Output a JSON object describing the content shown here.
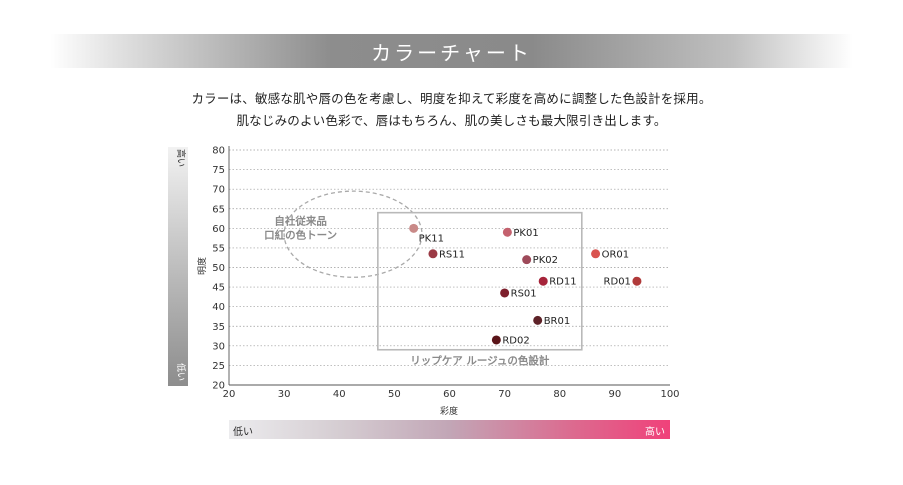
{
  "banner": {
    "title": "カラーチャート"
  },
  "intro": {
    "line1": "カラーは、敏感な肌や唇の色を考慮し、明度を抑えて彩度を高めに調整した色設計を採用。",
    "line2": "肌なじみのよい色彩で、唇はもちろん、肌の美しさも最大限引き出します。"
  },
  "color_bars": {
    "vertical": {
      "high": "高い",
      "low": "低い"
    },
    "horizontal": {
      "low": "低い",
      "high": "高い"
    }
  },
  "chart_data": {
    "type": "scatter",
    "xlabel": "彩度",
    "ylabel": "明度",
    "xlim": [
      20,
      100
    ],
    "ylim": [
      20,
      80
    ],
    "xticks": [
      20,
      30,
      40,
      50,
      60,
      70,
      80,
      90,
      100
    ],
    "yticks": [
      20,
      25,
      30,
      35,
      40,
      45,
      50,
      55,
      60,
      65,
      70,
      75,
      80
    ],
    "grid": "horizontal-dotted",
    "points": [
      {
        "label": "PK11",
        "x": 53.5,
        "y": 60,
        "color": "#c98a88",
        "label_pos": "below-right"
      },
      {
        "label": "RS11",
        "x": 57,
        "y": 53.5,
        "color": "#9b3a45",
        "label_pos": "right"
      },
      {
        "label": "PK01",
        "x": 70.5,
        "y": 59,
        "color": "#c4616e",
        "label_pos": "right"
      },
      {
        "label": "PK02",
        "x": 74,
        "y": 52,
        "color": "#9e4a5a",
        "label_pos": "right"
      },
      {
        "label": "OR01",
        "x": 86.5,
        "y": 53.5,
        "color": "#d9534f",
        "label_pos": "right"
      },
      {
        "label": "RD11",
        "x": 77,
        "y": 46.5,
        "color": "#a6243a",
        "label_pos": "right"
      },
      {
        "label": "RD01",
        "x": 94,
        "y": 46.5,
        "color": "#b03a3a",
        "label_pos": "left"
      },
      {
        "label": "RS01",
        "x": 70,
        "y": 43.5,
        "color": "#7d1f2c",
        "label_pos": "right"
      },
      {
        "label": "BR01",
        "x": 76,
        "y": 36.5,
        "color": "#5e2228",
        "label_pos": "right"
      },
      {
        "label": "RD02",
        "x": 68.5,
        "y": 31.5,
        "color": "#5a1418",
        "label_pos": "right"
      }
    ],
    "regions": [
      {
        "shape": "ellipse",
        "style": "dashed",
        "cx": 42.5,
        "cy": 58.5,
        "rx": 12.5,
        "ry": 11,
        "label_lines": [
          "自社従来品",
          "口紅の色トーン"
        ],
        "label_at": [
          33,
          61
        ]
      },
      {
        "shape": "rect",
        "style": "solid",
        "x0": 47,
        "x1": 84,
        "y0": 29,
        "y1": 64,
        "label": "リップケア ルージュの色設計"
      }
    ]
  }
}
